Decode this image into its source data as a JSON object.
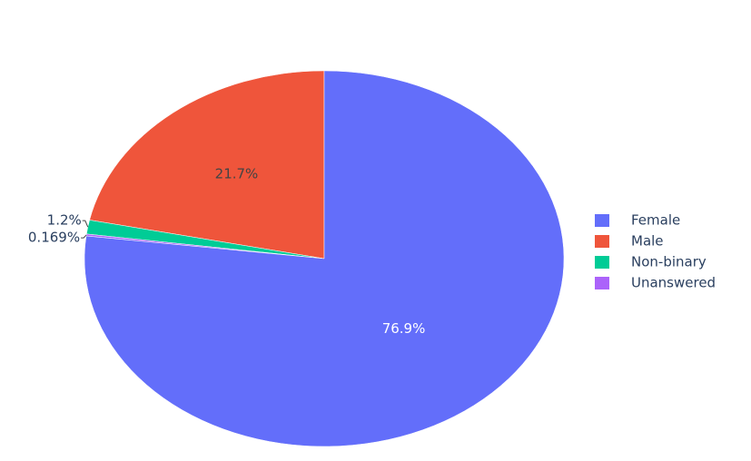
{
  "chart_data": {
    "type": "pie",
    "categories": [
      "Female",
      "Male",
      "Non-binary",
      "Unanswered"
    ],
    "values": [
      76.9,
      21.7,
      1.2,
      0.169
    ],
    "value_labels": [
      "76.9%",
      "21.7%",
      "1.2%",
      "0.169%"
    ],
    "colors": [
      "#636efa",
      "#ef553b",
      "#00cc96",
      "#ab63fa"
    ],
    "legend": "right"
  }
}
